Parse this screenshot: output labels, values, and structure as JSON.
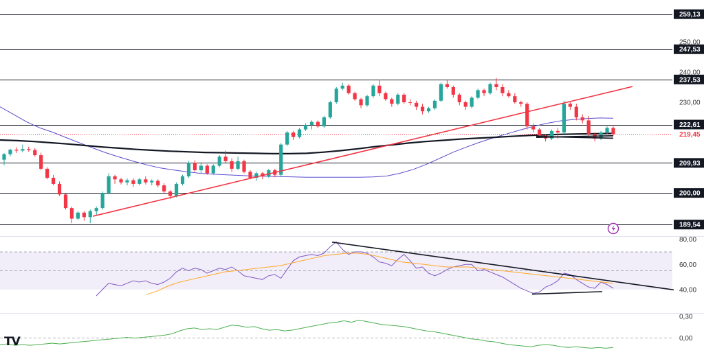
{
  "chart_data": [
    {
      "type": "candlestick",
      "title": "",
      "ylim": [
        185.5,
        262
      ],
      "current_price": {
        "value": 219.45,
        "label": "219,45",
        "color": "#f23645"
      },
      "horizontal_levels": [
        {
          "value": 259.13,
          "label": "259,13"
        },
        {
          "value": 247.53,
          "label": "247,53"
        },
        {
          "value": 237.53,
          "label": "237,53"
        },
        {
          "value": 222.61,
          "label": "222,61"
        },
        {
          "value": 209.93,
          "label": "209,93"
        },
        {
          "value": 200.0,
          "label": "200,00"
        },
        {
          "value": 189.54,
          "label": "189,54"
        }
      ],
      "y_ticks": [
        {
          "value": 250,
          "label": "250,00"
        },
        {
          "value": 240,
          "label": "240,00"
        },
        {
          "value": 230,
          "label": "230,00"
        }
      ],
      "candles": [
        [
          211.0,
          213.2,
          209.2,
          212.8
        ],
        [
          212.8,
          214.6,
          212.1,
          214.3
        ],
        [
          214.3,
          215.1,
          213.2,
          214.0
        ],
        [
          214.0,
          216.0,
          213.5,
          214.5
        ],
        [
          214.5,
          215.3,
          213.6,
          214.2
        ],
        [
          214.2,
          214.8,
          212.0,
          212.5
        ],
        [
          212.5,
          213.3,
          207.5,
          208.0
        ],
        [
          208.0,
          208.5,
          204.5,
          205.0
        ],
        [
          205.0,
          206.0,
          202.5,
          203.0
        ],
        [
          203.0,
          203.8,
          199.0,
          199.5
        ],
        [
          199.5,
          199.9,
          194.5,
          195.0
        ],
        [
          195.0,
          195.5,
          190.0,
          191.5
        ],
        [
          191.5,
          194.0,
          191.0,
          193.5
        ],
        [
          193.5,
          194.0,
          190.8,
          192.0
        ],
        [
          192.0,
          194.5,
          190.0,
          194.0
        ],
        [
          194.0,
          195.5,
          192.5,
          195.0
        ],
        [
          195.0,
          200.5,
          194.5,
          200.0
        ],
        [
          200.0,
          206.5,
          199.5,
          205.5
        ],
        [
          205.5,
          206.0,
          203.0,
          204.5
        ],
        [
          204.5,
          205.0,
          202.8,
          203.5
        ],
        [
          203.5,
          204.8,
          202.5,
          204.2
        ],
        [
          204.2,
          204.8,
          202.0,
          203.0
        ],
        [
          203.0,
          205.0,
          202.5,
          204.5
        ],
        [
          204.5,
          205.5,
          202.8,
          203.5
        ],
        [
          203.5,
          204.5,
          202.5,
          204.0
        ],
        [
          204.0,
          204.5,
          201.8,
          202.5
        ],
        [
          202.5,
          203.2,
          200.0,
          200.5
        ],
        [
          200.5,
          200.9,
          198.0,
          199.0
        ],
        [
          199.0,
          203.5,
          198.5,
          203.0
        ],
        [
          203.0,
          206.0,
          202.5,
          205.5
        ],
        [
          205.5,
          210.5,
          205.0,
          210.0
        ],
        [
          210.0,
          210.8,
          207.0,
          207.5
        ],
        [
          207.5,
          209.8,
          206.5,
          209.0
        ],
        [
          209.0,
          209.5,
          206.0,
          206.5
        ],
        [
          206.5,
          209.5,
          206.0,
          209.0
        ],
        [
          209.0,
          212.5,
          208.5,
          212.0
        ],
        [
          212.0,
          214.0,
          210.0,
          210.5
        ],
        [
          210.5,
          211.5,
          207.0,
          208.0
        ],
        [
          208.0,
          212.0,
          207.5,
          210.5
        ],
        [
          210.5,
          211.0,
          206.5,
          207.0
        ],
        [
          207.0,
          207.5,
          204.5,
          205.0
        ],
        [
          205.0,
          207.0,
          204.0,
          206.5
        ],
        [
          206.5,
          207.0,
          204.5,
          205.5
        ],
        [
          205.5,
          208.0,
          205.0,
          207.5
        ],
        [
          207.5,
          208.0,
          205.2,
          206.0
        ],
        [
          206.0,
          216.5,
          205.5,
          216.0
        ],
        [
          216.0,
          220.5,
          215.5,
          220.0
        ],
        [
          220.0,
          220.5,
          217.5,
          218.5
        ],
        [
          218.5,
          221.5,
          218.0,
          221.0
        ],
        [
          221.0,
          223.0,
          220.5,
          222.5
        ],
        [
          222.5,
          224.0,
          221.0,
          223.5
        ],
        [
          223.5,
          224.0,
          221.5,
          222.0
        ],
        [
          222.0,
          225.5,
          221.5,
          225.0
        ],
        [
          225.0,
          230.5,
          224.5,
          230.0
        ],
        [
          230.0,
          235.0,
          229.5,
          234.5
        ],
        [
          234.5,
          236.5,
          234.0,
          235.5
        ],
        [
          235.5,
          236.0,
          232.5,
          233.0
        ],
        [
          233.0,
          233.5,
          230.5,
          231.0
        ],
        [
          231.0,
          231.5,
          228.0,
          229.0
        ],
        [
          229.0,
          232.5,
          228.5,
          232.0
        ],
        [
          232.0,
          236.0,
          231.5,
          235.5
        ],
        [
          235.5,
          237.5,
          232.0,
          233.0
        ],
        [
          233.0,
          233.5,
          230.5,
          231.0
        ],
        [
          231.0,
          231.5,
          228.5,
          229.5
        ],
        [
          229.5,
          233.0,
          229.0,
          232.5
        ],
        [
          232.5,
          233.0,
          229.5,
          230.0
        ],
        [
          230.0,
          231.0,
          229.0,
          229.8
        ],
        [
          229.8,
          230.5,
          227.5,
          228.5
        ],
        [
          228.5,
          229.5,
          226.0,
          227.0
        ],
        [
          227.0,
          228.5,
          226.5,
          228.0
        ],
        [
          228.0,
          231.0,
          227.5,
          230.5
        ],
        [
          230.5,
          236.5,
          230.0,
          236.0
        ],
        [
          236.0,
          237.2,
          234.5,
          235.0
        ],
        [
          235.0,
          235.5,
          231.5,
          232.5
        ],
        [
          232.5,
          233.0,
          229.0,
          230.0
        ],
        [
          230.0,
          230.5,
          227.5,
          228.5
        ],
        [
          228.5,
          232.0,
          228.0,
          231.5
        ],
        [
          231.5,
          234.5,
          231.0,
          234.0
        ],
        [
          234.0,
          234.5,
          232.0,
          233.0
        ],
        [
          233.0,
          236.5,
          232.5,
          236.0
        ],
        [
          236.0,
          238.0,
          234.0,
          235.0
        ],
        [
          235.0,
          236.0,
          232.0,
          233.0
        ],
        [
          233.0,
          234.0,
          231.5,
          232.0
        ],
        [
          232.0,
          233.0,
          229.5,
          230.0
        ],
        [
          230.0,
          230.5,
          228.5,
          229.5
        ],
        [
          229.5,
          230.0,
          221.0,
          222.0
        ],
        [
          222.0,
          223.0,
          220.0,
          221.0
        ],
        [
          221.0,
          221.5,
          218.5,
          219.0
        ],
        [
          219.0,
          219.5,
          217.0,
          218.0
        ],
        [
          218.0,
          221.0,
          217.5,
          220.5
        ],
        [
          220.5,
          221.5,
          218.0,
          220.0
        ],
        [
          220.0,
          230.5,
          219.5,
          229.5
        ],
        [
          229.5,
          230.0,
          227.5,
          228.5
        ],
        [
          228.5,
          229.5,
          224.0,
          225.0
        ],
        [
          225.0,
          226.0,
          223.0,
          224.0
        ],
        [
          224.0,
          225.5,
          219.0,
          219.5
        ],
        [
          219.5,
          220.0,
          217.0,
          218.0
        ],
        [
          218.0,
          220.5,
          217.5,
          220.0
        ],
        [
          220.0,
          222.0,
          219.5,
          221.5
        ],
        [
          221.5,
          222.0,
          219.0,
          219.45
        ]
      ],
      "ma_series": [
        {
          "color": "#5b4ccf",
          "values": [
            228.5,
            226.0,
            223.5,
            221.5,
            220.0,
            218.2,
            216.5,
            214.8,
            213.2,
            211.8,
            210.5,
            209.3,
            208.3,
            207.6,
            207.0,
            206.5,
            206.2,
            206.0,
            205.8,
            205.6,
            205.5,
            205.4,
            205.3,
            205.2,
            205.2,
            205.2,
            205.2,
            205.2,
            205.3,
            205.6,
            206.5,
            207.8,
            209.5,
            211.5,
            213.5,
            215.2,
            216.8,
            218.2,
            219.5,
            220.8,
            222.0,
            223.0,
            223.8,
            224.3,
            224.6,
            224.8,
            224.7
          ]
        },
        {
          "color": "#131722",
          "values": [
            217.5,
            217.3,
            217.0,
            216.6,
            216.2,
            215.7,
            215.2,
            214.8,
            214.4,
            214.1,
            213.8,
            213.6,
            213.4,
            213.3,
            213.2,
            213.1,
            213.0,
            213.0,
            213.1,
            213.5,
            214.0,
            214.6,
            215.3,
            215.9,
            216.5,
            217.0,
            217.4,
            217.8,
            218.1,
            218.4,
            218.7,
            219.0,
            219.2,
            219.4,
            219.5,
            219.6,
            219.7
          ]
        }
      ],
      "trendlines": [
        {
          "color": "#f23645",
          "from": [
            135,
            192.3
          ],
          "to": [
            920,
            235.2
          ]
        },
        {
          "color": "#131722",
          "from": [
            780,
            218.4
          ],
          "to": [
            892,
            218.9
          ]
        },
        {
          "color": "#131722",
          "from": [
            780,
            218.7
          ],
          "to": [
            892,
            218.1
          ]
        }
      ]
    },
    {
      "type": "line",
      "title": "",
      "ylim": [
        34.5,
        81.5
      ],
      "band": [
        40,
        70
      ],
      "y_ticks": [
        {
          "value": 80,
          "label": "80,00"
        },
        {
          "value": 60,
          "label": "60,00"
        },
        {
          "value": 40,
          "label": "40,00"
        }
      ],
      "series": [
        {
          "color": "#7e57c2",
          "values": [
            35,
            40,
            45,
            44,
            43,
            45,
            47,
            46,
            47,
            45,
            44,
            46,
            49,
            54,
            57,
            55,
            57,
            56,
            53,
            55,
            57,
            56,
            58,
            55,
            51,
            50,
            49,
            48,
            51,
            52,
            49,
            56,
            63,
            66,
            67,
            68,
            67,
            69,
            74,
            78,
            72,
            68,
            70,
            70,
            69,
            66,
            62,
            61,
            59,
            64,
            68,
            63,
            57,
            58,
            53,
            51,
            53,
            56,
            58,
            59,
            60,
            60,
            55,
            56,
            54,
            52,
            50,
            47,
            44,
            41,
            39,
            37,
            38,
            42,
            44,
            47,
            53,
            52,
            48,
            45,
            42,
            41,
            46,
            44,
            41
          ]
        },
        {
          "color": "#ffa726",
          "values": [
            36,
            39,
            43,
            46,
            48,
            50,
            52,
            54,
            55,
            56,
            57,
            58,
            59,
            61,
            63,
            65,
            67,
            68,
            69,
            69,
            68,
            66,
            64,
            62,
            61,
            60,
            59,
            58,
            58,
            58,
            57,
            56,
            55,
            54,
            53,
            52,
            51,
            50,
            49,
            48,
            47,
            46,
            45
          ]
        }
      ],
      "trendlines": [
        {
          "color": "#131722",
          "from": [
            483,
            77.8
          ],
          "to": [
            980,
            39.8
          ]
        },
        {
          "color": "#131722",
          "from": [
            774,
            36.4
          ],
          "to": [
            876,
            38.4
          ]
        }
      ]
    },
    {
      "type": "line",
      "title": "",
      "ylim": [
        -0.27,
        0.33
      ],
      "zero_line": true,
      "y_ticks": [
        {
          "value": 0.3,
          "label": "0,30"
        },
        {
          "value": 0.0,
          "label": "0,00"
        }
      ],
      "series": [
        {
          "color": "#4caf50",
          "values": [
            -0.09,
            -0.08,
            -0.1,
            -0.09,
            -0.1,
            -0.09,
            -0.08,
            -0.07,
            -0.08,
            -0.07,
            -0.06,
            -0.05,
            -0.04,
            -0.03,
            -0.02,
            -0.01,
            0.0,
            0.01,
            0.0,
            0.01,
            0.02,
            0.03,
            0.04,
            0.06,
            0.1,
            0.13,
            0.14,
            0.12,
            0.13,
            0.12,
            0.15,
            0.18,
            0.17,
            0.15,
            0.16,
            0.13,
            0.11,
            0.12,
            0.1,
            0.11,
            0.13,
            0.15,
            0.17,
            0.19,
            0.21,
            0.22,
            0.24,
            0.22,
            0.25,
            0.23,
            0.21,
            0.19,
            0.18,
            0.17,
            0.16,
            0.14,
            0.12,
            0.1,
            0.09,
            0.07,
            0.05,
            0.03,
            0.01,
            -0.01,
            -0.02,
            -0.04,
            -0.05,
            -0.07,
            -0.09,
            -0.1,
            -0.11,
            -0.12,
            -0.1,
            -0.09,
            -0.1,
            -0.12,
            -0.13,
            -0.12,
            -0.13,
            -0.14,
            -0.13,
            -0.14,
            -0.13
          ]
        }
      ]
    }
  ],
  "watermark": {
    "text": "TV"
  },
  "icons": {
    "alert": "lightning-alert-icon"
  },
  "colors": {
    "up": "#26a69a",
    "down": "#f23645",
    "level_line": "#131722"
  }
}
